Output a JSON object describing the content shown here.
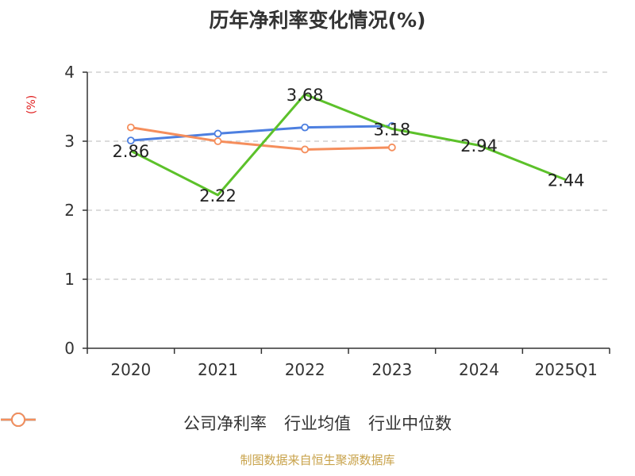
{
  "title": "历年净利率变化情况(%)",
  "y_unit_label": "(%)",
  "footer": "制图数据来自恒生聚源数据库",
  "chart_data": {
    "type": "line",
    "title": "历年净利率变化情况(%)",
    "ylabel": "(%)",
    "categories": [
      "2020",
      "2021",
      "2022",
      "2023",
      "2024",
      "2025Q1"
    ],
    "ylim": [
      0,
      4
    ],
    "yticks": [
      0,
      1,
      2,
      3,
      4
    ],
    "grid": true,
    "legend_position": "bottom",
    "series": [
      {
        "name": "公司净利率",
        "color": "#5cc12a",
        "values": [
          2.86,
          2.22,
          3.68,
          3.18,
          2.94,
          2.44
        ],
        "labels": [
          "2.86",
          "2.22",
          "3.68",
          "3.18",
          "2.94",
          "2.44"
        ]
      },
      {
        "name": "行业均值",
        "color": "#4d7fe0",
        "values": [
          3.01,
          3.11,
          3.2,
          3.22,
          null,
          null
        ]
      },
      {
        "name": "行业中位数",
        "color": "#f58e5c",
        "values": [
          3.2,
          3.0,
          2.88,
          2.91,
          null,
          null
        ]
      }
    ]
  }
}
